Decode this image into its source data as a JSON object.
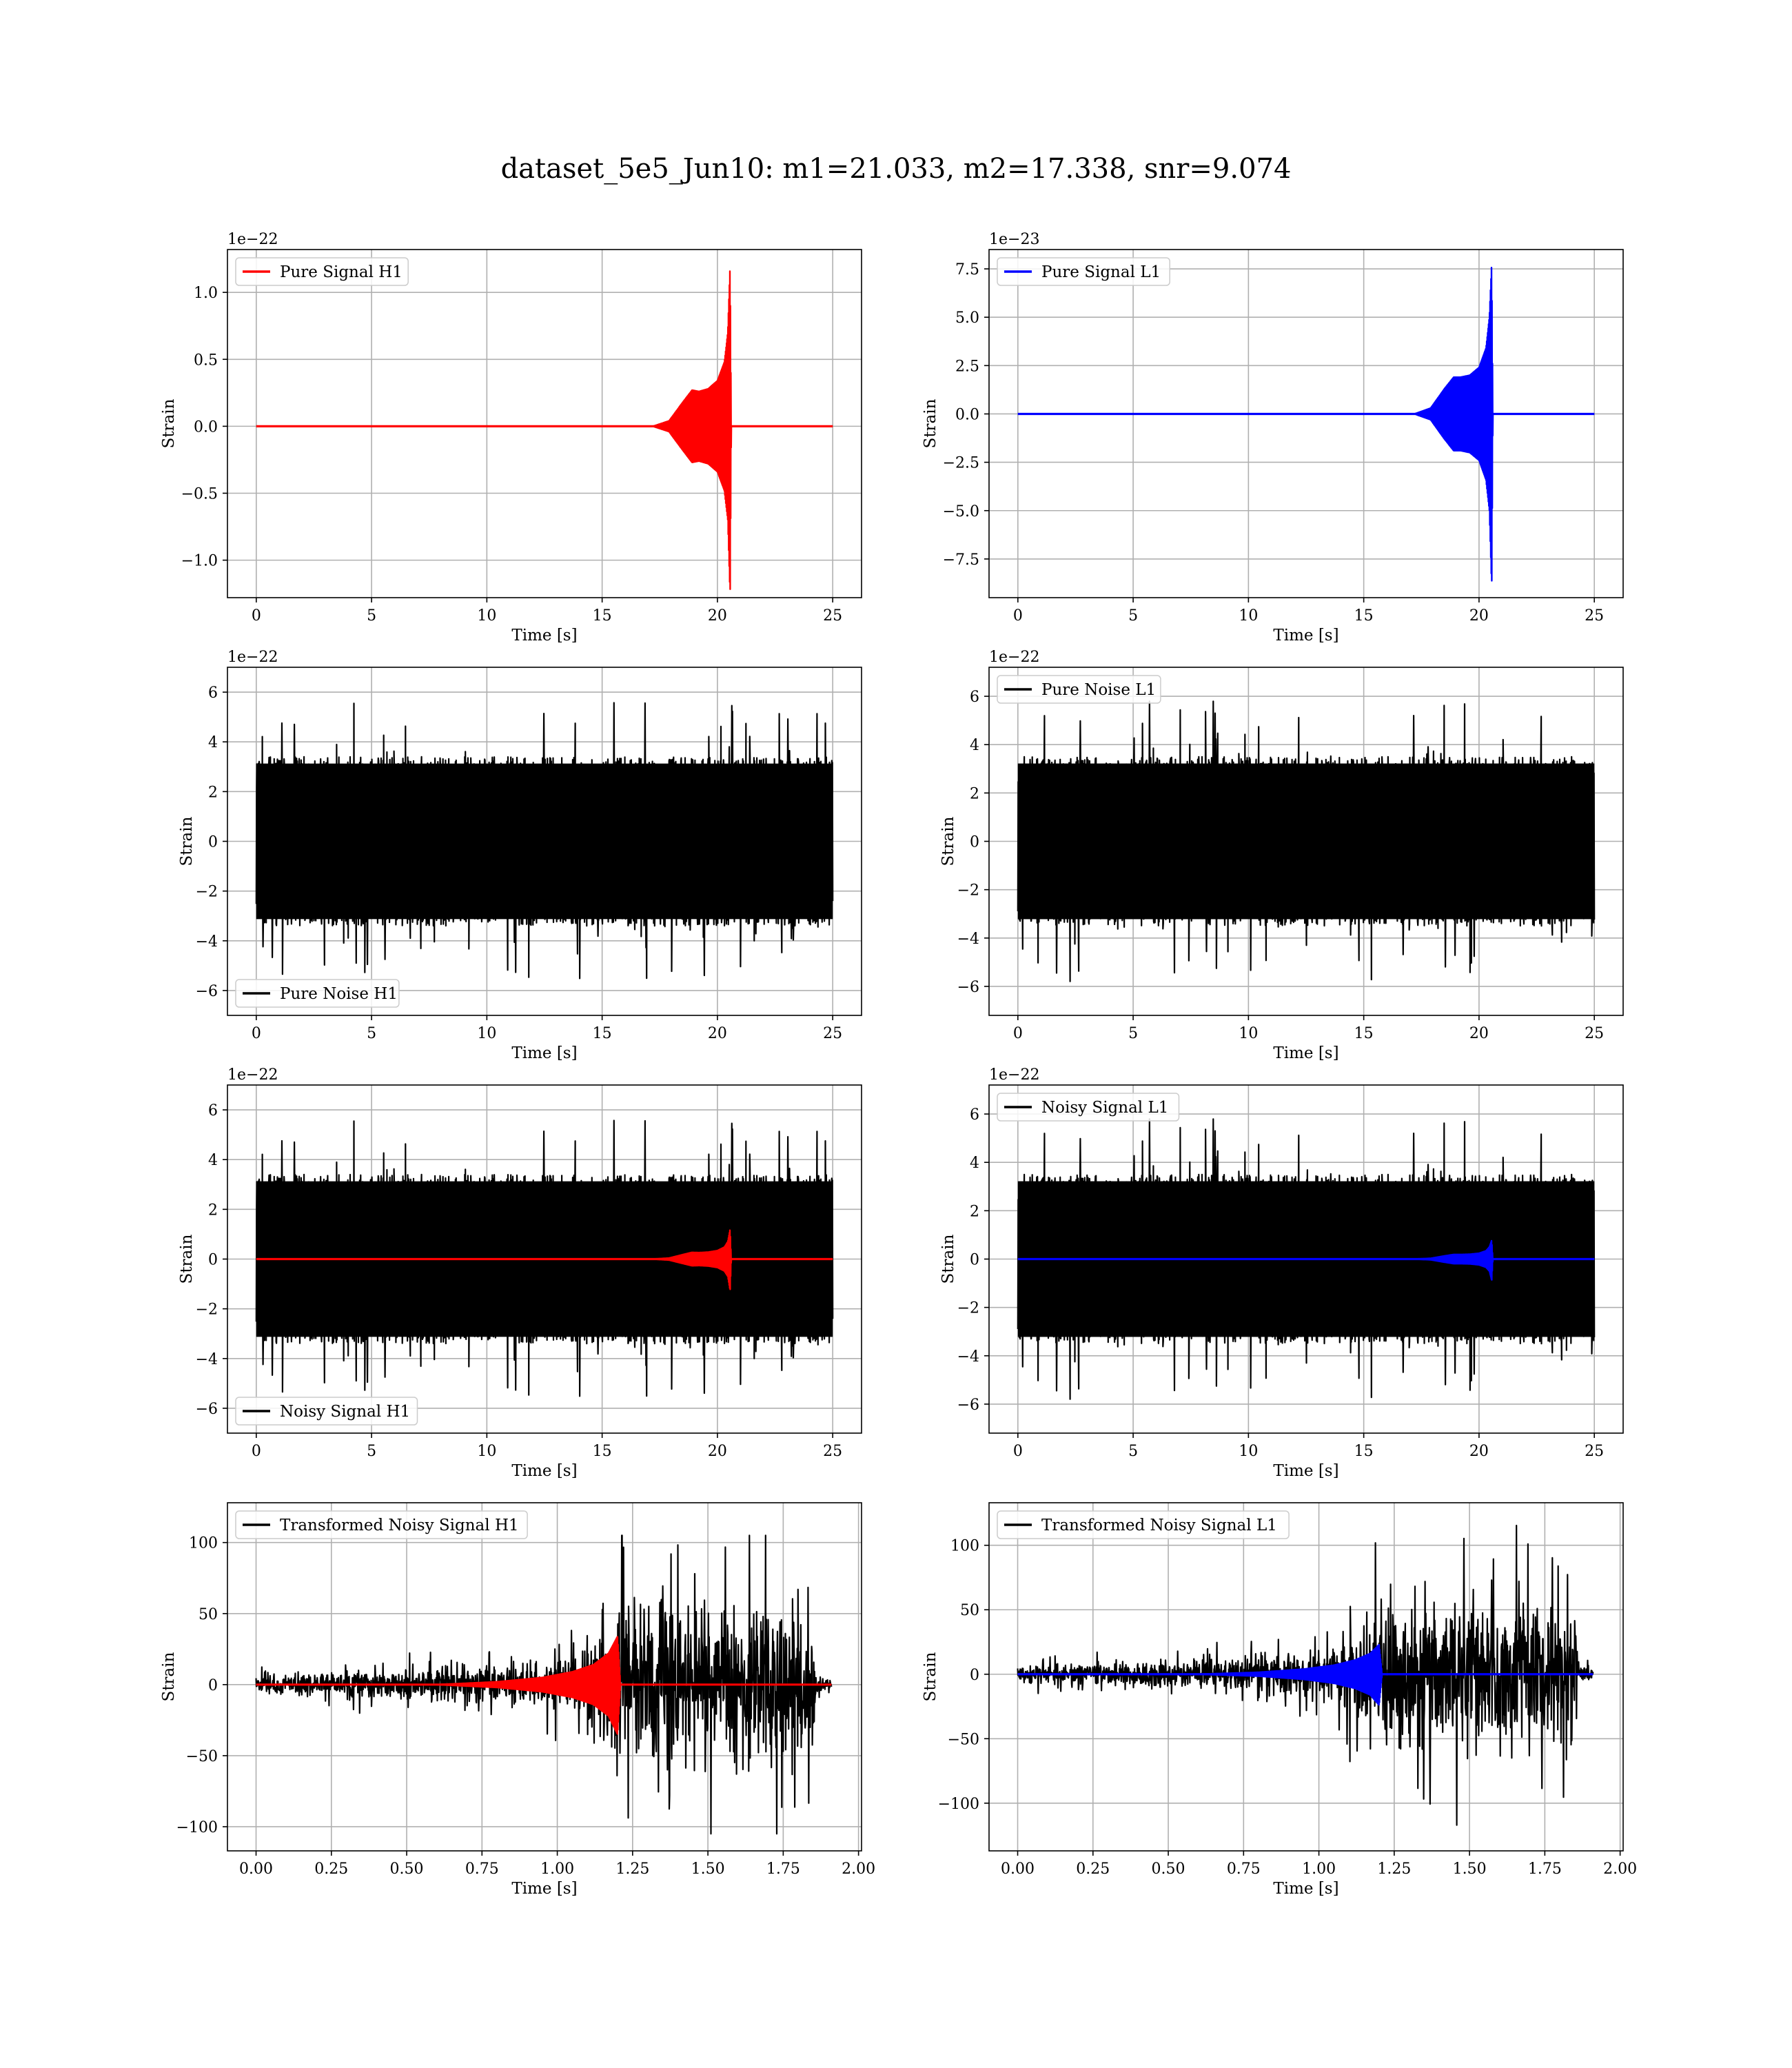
{
  "suptitle": "dataset_5e5_Jun10: m1=21.033, m2=17.338, snr=9.074",
  "colors": {
    "h1_signal": "#ff0000",
    "l1_signal": "#0000ff",
    "noise": "#000000",
    "grid": "#b0b0b0"
  },
  "chart_data": [
    {
      "type": "line",
      "title": "",
      "xlabel": "Time [s]",
      "ylabel": "Strain",
      "xlim": [
        -1.25,
        26.25
      ],
      "ylim": [
        -1.28,
        1.32
      ],
      "xticks": [
        0,
        5,
        10,
        15,
        20,
        25
      ],
      "xtick_labels": [
        "0",
        "5",
        "10",
        "15",
        "20",
        "25"
      ],
      "yticks": [
        -1.0,
        -0.5,
        0.0,
        0.5,
        1.0
      ],
      "ytick_labels": [
        "−1.0",
        "−0.5",
        "0.0",
        "0.5",
        "1.0"
      ],
      "offset_text": "1e−22",
      "grid": true,
      "legend": {
        "placement": "top-left",
        "entries": [
          {
            "label": "Pure Signal H1",
            "color": "#ff0000"
          }
        ]
      },
      "series": [
        {
          "name": "Pure Signal H1",
          "color": "#ff0000",
          "kind": "chirp",
          "t0": 0,
          "t1": 25,
          "tc": 20.55,
          "envelope": {
            "x": [
              0,
              17.2,
              17.9,
              18.5,
              18.9,
              19.2,
              19.6,
              20.0,
              20.3,
              20.45,
              20.55,
              20.6,
              25
            ],
            "upper": [
              0,
              0,
              0.04,
              0.18,
              0.27,
              0.26,
              0.28,
              0.34,
              0.48,
              0.7,
              1.2,
              0,
              0
            ],
            "lower": [
              0,
              0,
              -0.04,
              -0.18,
              -0.27,
              -0.26,
              -0.28,
              -0.34,
              -0.48,
              -0.7,
              -1.27,
              0,
              0
            ]
          }
        }
      ]
    },
    {
      "type": "line",
      "title": "",
      "xlabel": "Time [s]",
      "ylabel": "Strain",
      "xlim": [
        -1.25,
        26.25
      ],
      "ylim": [
        -9.5,
        8.5
      ],
      "xticks": [
        0,
        5,
        10,
        15,
        20,
        25
      ],
      "xtick_labels": [
        "0",
        "5",
        "10",
        "15",
        "20",
        "25"
      ],
      "yticks": [
        -7.5,
        -5.0,
        -2.5,
        0.0,
        2.5,
        5.0,
        7.5
      ],
      "ytick_labels": [
        "−7.5",
        "−5.0",
        "−2.5",
        "0.0",
        "2.5",
        "5.0",
        "7.5"
      ],
      "offset_text": "1e−23",
      "grid": true,
      "legend": {
        "placement": "top-left",
        "entries": [
          {
            "label": "Pure Signal L1",
            "color": "#0000ff"
          }
        ]
      },
      "series": [
        {
          "name": "Pure Signal L1",
          "color": "#0000ff",
          "kind": "chirp",
          "t0": 0,
          "t1": 25,
          "tc": 20.55,
          "envelope": {
            "x": [
              0,
              17.2,
              17.9,
              18.5,
              18.9,
              19.2,
              19.6,
              20.0,
              20.3,
              20.45,
              20.55,
              20.6,
              25
            ],
            "upper": [
              0,
              0,
              0.3,
              1.3,
              1.9,
              1.9,
              2.0,
              2.4,
              3.4,
              5.0,
              7.8,
              0,
              0
            ],
            "lower": [
              0,
              0,
              -0.3,
              -1.3,
              -1.9,
              -1.9,
              -2.0,
              -2.4,
              -3.4,
              -5.0,
              -9.0,
              0,
              0
            ]
          }
        }
      ]
    },
    {
      "type": "line",
      "title": "",
      "xlabel": "Time [s]",
      "ylabel": "Strain",
      "xlim": [
        -1.25,
        26.25
      ],
      "ylim": [
        -7.0,
        7.0
      ],
      "xticks": [
        0,
        5,
        10,
        15,
        20,
        25
      ],
      "xtick_labels": [
        "0",
        "5",
        "10",
        "15",
        "20",
        "25"
      ],
      "yticks": [
        -6,
        -4,
        -2,
        0,
        2,
        4,
        6
      ],
      "ytick_labels": [
        "−6",
        "−4",
        "−2",
        "0",
        "2",
        "4",
        "6"
      ],
      "offset_text": "1e−22",
      "grid": true,
      "legend": {
        "placement": "bottom-left",
        "entries": [
          {
            "label": "Pure Noise H1",
            "color": "#000000"
          }
        ]
      },
      "series": [
        {
          "name": "Pure Noise H1",
          "color": "#000000",
          "kind": "noise",
          "t0": 0,
          "t1": 25,
          "band": 3.4,
          "peak": 5.6,
          "seed": 11
        }
      ]
    },
    {
      "type": "line",
      "title": "",
      "xlabel": "Time [s]",
      "ylabel": "Strain",
      "xlim": [
        -1.25,
        26.25
      ],
      "ylim": [
        -7.2,
        7.2
      ],
      "xticks": [
        0,
        5,
        10,
        15,
        20,
        25
      ],
      "xtick_labels": [
        "0",
        "5",
        "10",
        "15",
        "20",
        "25"
      ],
      "yticks": [
        -6,
        -4,
        -2,
        0,
        2,
        4,
        6
      ],
      "ytick_labels": [
        "−6",
        "−4",
        "−2",
        "0",
        "2",
        "4",
        "6"
      ],
      "offset_text": "1e−22",
      "grid": true,
      "legend": {
        "placement": "top-left",
        "entries": [
          {
            "label": "Pure Noise L1",
            "color": "#000000"
          }
        ]
      },
      "series": [
        {
          "name": "Pure Noise L1",
          "color": "#000000",
          "kind": "noise",
          "t0": 0,
          "t1": 25,
          "band": 3.5,
          "peak": 5.8,
          "seed": 23
        }
      ]
    },
    {
      "type": "line",
      "title": "",
      "xlabel": "Time [s]",
      "ylabel": "Strain",
      "xlim": [
        -1.25,
        26.25
      ],
      "ylim": [
        -7.0,
        7.0
      ],
      "xticks": [
        0,
        5,
        10,
        15,
        20,
        25
      ],
      "xtick_labels": [
        "0",
        "5",
        "10",
        "15",
        "20",
        "25"
      ],
      "yticks": [
        -6,
        -4,
        -2,
        0,
        2,
        4,
        6
      ],
      "ytick_labels": [
        "−6",
        "−4",
        "−2",
        "0",
        "2",
        "4",
        "6"
      ],
      "offset_text": "1e−22",
      "grid": true,
      "legend": {
        "placement": "bottom-left",
        "entries": [
          {
            "label": "Noisy Signal H1",
            "color": "#000000"
          }
        ]
      },
      "series": [
        {
          "name": "Noisy Signal H1",
          "color": "#000000",
          "kind": "noise",
          "t0": 0,
          "t1": 25,
          "band": 3.4,
          "peak": 5.6,
          "seed": 11
        },
        {
          "name": "",
          "color": "#ff0000",
          "kind": "chirp",
          "t0": 0,
          "t1": 25,
          "tc": 20.55,
          "envelope": {
            "x": [
              0,
              17.2,
              17.9,
              18.5,
              18.9,
              19.2,
              19.6,
              20.0,
              20.3,
              20.45,
              20.55,
              20.6,
              25
            ],
            "upper": [
              0,
              0,
              0.04,
              0.18,
              0.27,
              0.26,
              0.28,
              0.34,
              0.48,
              0.7,
              1.2,
              0,
              0
            ],
            "lower": [
              0,
              0,
              -0.04,
              -0.18,
              -0.27,
              -0.26,
              -0.28,
              -0.34,
              -0.48,
              -0.7,
              -1.27,
              0,
              0
            ]
          }
        }
      ]
    },
    {
      "type": "line",
      "title": "",
      "xlabel": "Time [s]",
      "ylabel": "Strain",
      "xlim": [
        -1.25,
        26.25
      ],
      "ylim": [
        -7.2,
        7.2
      ],
      "xticks": [
        0,
        5,
        10,
        15,
        20,
        25
      ],
      "xtick_labels": [
        "0",
        "5",
        "10",
        "15",
        "20",
        "25"
      ],
      "yticks": [
        -6,
        -4,
        -2,
        0,
        2,
        4,
        6
      ],
      "ytick_labels": [
        "−6",
        "−4",
        "−2",
        "0",
        "2",
        "4",
        "6"
      ],
      "offset_text": "1e−22",
      "grid": true,
      "legend": {
        "placement": "top-left",
        "entries": [
          {
            "label": "Noisy Signal L1",
            "color": "#000000"
          }
        ]
      },
      "series": [
        {
          "name": "Noisy Signal L1",
          "color": "#000000",
          "kind": "noise",
          "t0": 0,
          "t1": 25,
          "band": 3.5,
          "peak": 5.8,
          "seed": 23
        },
        {
          "name": "",
          "color": "#0000ff",
          "kind": "chirp",
          "t0": 0,
          "t1": 25,
          "tc": 20.55,
          "envelope": {
            "x": [
              0,
              17.2,
              17.9,
              18.5,
              18.9,
              19.2,
              19.6,
              20.0,
              20.3,
              20.45,
              20.55,
              20.6,
              25
            ],
            "upper": [
              0,
              0,
              0.03,
              0.13,
              0.19,
              0.19,
              0.2,
              0.24,
              0.34,
              0.5,
              0.78,
              0,
              0
            ],
            "lower": [
              0,
              0,
              -0.03,
              -0.13,
              -0.19,
              -0.19,
              -0.2,
              -0.24,
              -0.34,
              -0.5,
              -0.9,
              0,
              0
            ]
          }
        }
      ]
    },
    {
      "type": "line",
      "title": "",
      "xlabel": "Time [s]",
      "ylabel": "Strain",
      "xlim": [
        -0.095,
        2.01
      ],
      "ylim": [
        -117,
        128
      ],
      "xticks": [
        0.0,
        0.25,
        0.5,
        0.75,
        1.0,
        1.25,
        1.5,
        1.75,
        2.0
      ],
      "xtick_labels": [
        "0.00",
        "0.25",
        "0.50",
        "0.75",
        "1.00",
        "1.25",
        "1.50",
        "1.75",
        "2.00"
      ],
      "yticks": [
        -100,
        -50,
        0,
        50,
        100
      ],
      "ytick_labels": [
        "−100",
        "−50",
        "0",
        "50",
        "100"
      ],
      "offset_text": "",
      "grid": true,
      "legend": {
        "placement": "top-left",
        "entries": [
          {
            "label": "Transformed Noisy Signal H1",
            "color": "#000000"
          }
        ]
      },
      "series": [
        {
          "name": "Transformed Noisy Signal H1",
          "color": "#000000",
          "kind": "whitened",
          "t0": 0,
          "t1": 1.91,
          "envelope": {
            "x": [
              0,
              0.3,
              0.6,
              0.9,
              1.05,
              1.15,
              1.2,
              1.5,
              1.85,
              1.86,
              1.91
            ],
            "amp": [
              6,
              10,
              12,
              16,
              22,
              45,
              58,
              60,
              58,
              6,
              5
            ]
          },
          "peak": 105,
          "seed": 41
        },
        {
          "name": "",
          "color": "#ff0000",
          "kind": "chirp",
          "t0": 0,
          "t1": 1.91,
          "tc": 1.2,
          "envelope": {
            "x": [
              0,
              0.6,
              0.8,
              0.95,
              1.05,
              1.12,
              1.17,
              1.2,
              1.21,
              1.91
            ],
            "upper": [
              0,
              0,
              2,
              5,
              9,
              14,
              22,
              34,
              0,
              0
            ],
            "lower": [
              0,
              0,
              -2,
              -5,
              -9,
              -14,
              -22,
              -35,
              0,
              0
            ]
          }
        }
      ]
    },
    {
      "type": "line",
      "title": "",
      "xlabel": "Time [s]",
      "ylabel": "Strain",
      "xlim": [
        -0.095,
        2.01
      ],
      "ylim": [
        -137,
        133
      ],
      "xticks": [
        0.0,
        0.25,
        0.5,
        0.75,
        1.0,
        1.25,
        1.5,
        1.75,
        2.0
      ],
      "xtick_labels": [
        "0.00",
        "0.25",
        "0.50",
        "0.75",
        "1.00",
        "1.25",
        "1.50",
        "1.75",
        "2.00"
      ],
      "yticks": [
        -100,
        -50,
        0,
        50,
        100
      ],
      "ytick_labels": [
        "−100",
        "−50",
        "0",
        "50",
        "100"
      ],
      "offset_text": "",
      "grid": true,
      "legend": {
        "placement": "top-left",
        "entries": [
          {
            "label": "Transformed Noisy Signal L1",
            "color": "#000000"
          }
        ]
      },
      "series": [
        {
          "name": "Transformed Noisy Signal L1",
          "color": "#000000",
          "kind": "whitened",
          "t0": 0,
          "t1": 1.91,
          "envelope": {
            "x": [
              0,
              0.3,
              0.6,
              0.9,
              1.05,
              1.15,
              1.2,
              1.5,
              1.85,
              1.86,
              1.91
            ],
            "amp": [
              7,
              10,
              12,
              16,
              24,
              45,
              58,
              60,
              60,
              6,
              5
            ]
          },
          "peak": 122,
          "seed": 53
        },
        {
          "name": "",
          "color": "#0000ff",
          "kind": "chirp",
          "t0": 0,
          "t1": 1.91,
          "tc": 1.2,
          "envelope": {
            "x": [
              0,
              0.6,
              0.8,
              0.95,
              1.05,
              1.12,
              1.17,
              1.2,
              1.21,
              1.91
            ],
            "upper": [
              0,
              0,
              1.5,
              4,
              7,
              11,
              16,
              23,
              0,
              0
            ],
            "lower": [
              0,
              0,
              -1.5,
              -4,
              -7,
              -11,
              -16,
              -24,
              0,
              0
            ]
          }
        }
      ]
    }
  ]
}
